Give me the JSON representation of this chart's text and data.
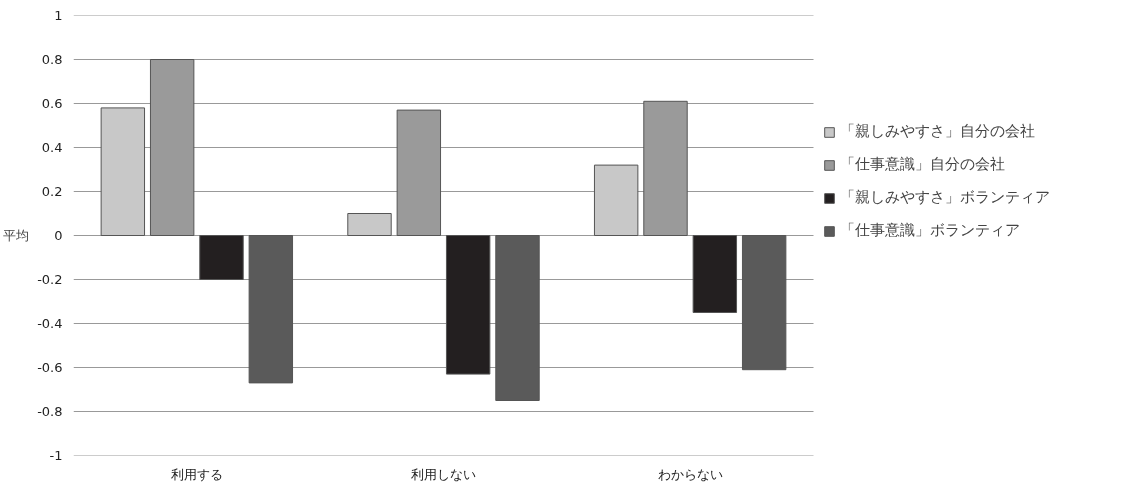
{
  "chart_data": {
    "type": "bar",
    "ylabel": "平均",
    "categories": [
      "利用する",
      "利用しない",
      "わからない"
    ],
    "series": [
      {
        "name": "「親しみやすさ」自分の会社",
        "color": "#c8c8c8",
        "values": [
          0.58,
          0.1,
          0.32
        ]
      },
      {
        "name": "「仕事意識」自分の会社",
        "color": "#9a9a9a",
        "values": [
          0.8,
          0.57,
          0.61
        ]
      },
      {
        "name": "「親しみやすさ」ボランティア",
        "color": "#231f20",
        "values": [
          -0.2,
          -0.63,
          -0.35
        ]
      },
      {
        "name": "「仕事意識」ボランティア",
        "color": "#5a5a5a",
        "values": [
          -0.67,
          -0.75,
          -0.61
        ]
      }
    ],
    "ylim": [
      -1,
      1
    ],
    "yticks": [
      -1,
      -0.8,
      -0.6,
      -0.4,
      -0.2,
      0,
      0.2,
      0.4,
      0.6,
      0.8,
      1
    ],
    "grid": "y",
    "legend": "right"
  }
}
